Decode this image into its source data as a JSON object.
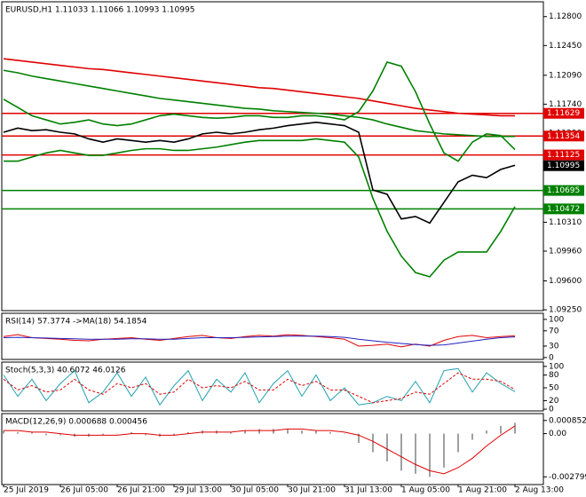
{
  "chart_data": [
    {
      "type": "line",
      "title": "EURUSD,H1  1.11033 1.11066 1.10993 1.10995",
      "ylim": [
        1.0924,
        1.1298
      ],
      "yticks": [
        {
          "value": 1.128,
          "label": "1.12800"
        },
        {
          "value": 1.1245,
          "label": "1.12450"
        },
        {
          "value": 1.1209,
          "label": "1.12090"
        },
        {
          "value": 1.1174,
          "label": "1.11740"
        },
        {
          "value": 1.1139,
          "label": "1.11390"
        },
        {
          "value": 1.1031,
          "label": "1.10310"
        },
        {
          "value": 1.0996,
          "label": "1.09960"
        },
        {
          "value": 1.096,
          "label": "1.09600"
        },
        {
          "value": 1.0925,
          "label": "1.09250"
        }
      ],
      "levels": [
        {
          "value": 1.11629,
          "color": "#e00000"
        },
        {
          "value": 1.11354,
          "color": "#e00000"
        },
        {
          "value": 1.11125,
          "color": "#e00000"
        },
        {
          "value": 1.10695,
          "color": "#008000"
        },
        {
          "value": 1.10472,
          "color": "#008000"
        }
      ],
      "last_price": 1.10995,
      "series": [
        {
          "color": "#e00000",
          "values": [
            1.1229,
            1.1227,
            1.1225,
            1.1223,
            1.1221,
            1.1219,
            1.1217,
            1.1216,
            1.1214,
            1.1212,
            1.121,
            1.1208,
            1.1206,
            1.1204,
            1.1202,
            1.12,
            1.1198,
            1.1196,
            1.1194,
            1.1193,
            1.1191,
            1.1189,
            1.1187,
            1.1185,
            1.1183,
            1.1181,
            1.1178,
            1.1175,
            1.1172,
            1.1169,
            1.1167,
            1.1165,
            1.1163,
            1.1162,
            1.1161,
            1.116,
            1.116
          ]
        },
        {
          "color": "#008000",
          "values": [
            1.1215,
            1.1212,
            1.1208,
            1.1205,
            1.1202,
            1.1199,
            1.1196,
            1.1193,
            1.119,
            1.1187,
            1.1184,
            1.1181,
            1.1179,
            1.1177,
            1.1175,
            1.1173,
            1.1171,
            1.1169,
            1.1168,
            1.1166,
            1.1165,
            1.1164,
            1.1163,
            1.1162,
            1.116,
            1.1158,
            1.1155,
            1.115,
            1.1146,
            1.1142,
            1.114,
            1.1138,
            1.1137,
            1.1136,
            1.1135,
            1.1135,
            1.1135
          ]
        },
        {
          "color": "#008000",
          "values": [
            1.118,
            1.117,
            1.116,
            1.1155,
            1.115,
            1.1152,
            1.1155,
            1.115,
            1.1148,
            1.115,
            1.1155,
            1.116,
            1.1162,
            1.116,
            1.1158,
            1.1157,
            1.1158,
            1.116,
            1.116,
            1.1158,
            1.1158,
            1.116,
            1.116,
            1.1158,
            1.1155,
            1.1165,
            1.119,
            1.1225,
            1.122,
            1.1189,
            1.115,
            1.1115,
            1.1105,
            1.1128,
            1.1138,
            1.1136,
            1.1119
          ]
        },
        {
          "color": "#008000",
          "values": [
            1.1105,
            1.1105,
            1.111,
            1.1115,
            1.1118,
            1.1115,
            1.1112,
            1.1112,
            1.1115,
            1.1118,
            1.112,
            1.112,
            1.1118,
            1.1118,
            1.112,
            1.1122,
            1.1125,
            1.1128,
            1.113,
            1.113,
            1.113,
            1.113,
            1.1132,
            1.113,
            1.1128,
            1.111,
            1.106,
            1.102,
            1.099,
            1.097,
            1.0965,
            1.0985,
            1.0995,
            1.0995,
            1.0995,
            1.102,
            1.105
          ]
        },
        {
          "color": "#000000",
          "values": [
            1.114,
            1.1145,
            1.1142,
            1.1143,
            1.114,
            1.1138,
            1.1132,
            1.1128,
            1.1132,
            1.113,
            1.1128,
            1.113,
            1.1128,
            1.1132,
            1.1138,
            1.114,
            1.1138,
            1.114,
            1.1143,
            1.1145,
            1.1148,
            1.115,
            1.1152,
            1.115,
            1.1148,
            1.114,
            1.107,
            1.1065,
            1.1035,
            1.1038,
            1.103,
            1.1055,
            1.108,
            1.1088,
            1.1085,
            1.1095,
            1.11
          ]
        }
      ]
    },
    {
      "type": "line",
      "title": "RSI(14) 57.3774  ->MA(18) 54.1854",
      "ylim": [
        -5,
        116
      ],
      "yticks": [
        100,
        70,
        30,
        0
      ],
      "series": [
        {
          "color": "#e00000",
          "values": [
            55,
            60,
            52,
            50,
            48,
            45,
            44,
            48,
            50,
            52,
            48,
            45,
            50,
            55,
            58,
            52,
            50,
            55,
            58,
            56,
            60,
            58,
            55,
            52,
            48,
            30,
            32,
            35,
            28,
            35,
            30,
            45,
            55,
            58,
            52,
            55,
            57
          ]
        },
        {
          "color": "#2020c0",
          "values": [
            52,
            53,
            52,
            51,
            50,
            49,
            48,
            48,
            48,
            49,
            49,
            48,
            48,
            50,
            52,
            52,
            52,
            53,
            54,
            55,
            56,
            56,
            56,
            55,
            53,
            48,
            44,
            40,
            37,
            34,
            32,
            33,
            38,
            43,
            48,
            52,
            54
          ]
        }
      ]
    },
    {
      "type": "line",
      "title": "Stoch(5,3,3) 40.6072 46.0126",
      "ylim": [
        -4,
        110
      ],
      "yticks": [
        100,
        80,
        50,
        20,
        0
      ],
      "series": [
        {
          "color": "#20a0b0",
          "values": [
            80,
            30,
            70,
            20,
            60,
            90,
            15,
            40,
            85,
            30,
            75,
            10,
            55,
            90,
            20,
            70,
            40,
            85,
            15,
            60,
            90,
            30,
            80,
            20,
            50,
            10,
            15,
            30,
            20,
            65,
            15,
            90,
            95,
            40,
            85,
            60,
            41
          ]
        },
        {
          "color": "#e00000",
          "dash": true,
          "values": [
            70,
            45,
            55,
            40,
            45,
            70,
            45,
            35,
            60,
            50,
            60,
            35,
            40,
            70,
            50,
            55,
            50,
            65,
            45,
            45,
            70,
            55,
            65,
            45,
            45,
            30,
            15,
            20,
            25,
            40,
            35,
            60,
            85,
            70,
            70,
            65,
            46
          ]
        }
      ]
    },
    {
      "type": "macd",
      "title": "MACD(12,26,9) 0.000688 0.000456",
      "ylim": [
        -0.0033,
        0.0013
      ],
      "yticks": [
        0.000852,
        {
          "value": 0,
          "label": "0.00"
        },
        -0.002799
      ],
      "categories": [
        "25 Jul 2019",
        null,
        null,
        null,
        "26 Jul 05:00",
        null,
        null,
        null,
        "26 Jul 21:00",
        null,
        null,
        null,
        "29 Jul 13:00",
        null,
        null,
        null,
        "30 Jul 05:00",
        null,
        null,
        null,
        "30 Jul 21:00",
        null,
        null,
        null,
        "31 Jul 13:00",
        null,
        null,
        null,
        "1 Aug 05:00",
        null,
        null,
        null,
        "1 Aug 21:00",
        null,
        null,
        null,
        "2 Aug 13:00"
      ],
      "series": [
        {
          "color": "#a0a0a0",
          "style": "histogram",
          "values": [
            0.0002,
            0.0001,
            0.0001,
            -0.0001,
            -0.0001,
            -0.0002,
            -0.0002,
            -0.0001,
            0,
            0.0001,
            -0.0001,
            -0.0002,
            -0.0001,
            0.0001,
            0.0002,
            0.0002,
            0.0001,
            0.0002,
            0.0003,
            0.0003,
            0.0003,
            0.0002,
            0.0002,
            0.0001,
            0,
            -0.0006,
            -0.0012,
            -0.0018,
            -0.0024,
            -0.0026,
            -0.0028,
            -0.0022,
            -0.0012,
            -0.0004,
            0.0002,
            0.0005,
            0.0007
          ]
        },
        {
          "color": "#e00000",
          "values": [
            0.0002,
            0.0002,
            0.0001,
            0.0001,
            0,
            -0.0001,
            -0.0001,
            -0.0001,
            -0.0001,
            0,
            0,
            -0.0001,
            -0.0001,
            0,
            0.0001,
            0.0001,
            0.0001,
            0.0002,
            0.0002,
            0.0002,
            0.0003,
            0.0003,
            0.0002,
            0.0002,
            0.0001,
            -0.0001,
            -0.0005,
            -0.001,
            -0.0015,
            -0.002,
            -0.0024,
            -0.0026,
            -0.0022,
            -0.0016,
            -0.0008,
            -0.0001,
            0.0005
          ]
        }
      ]
    }
  ]
}
